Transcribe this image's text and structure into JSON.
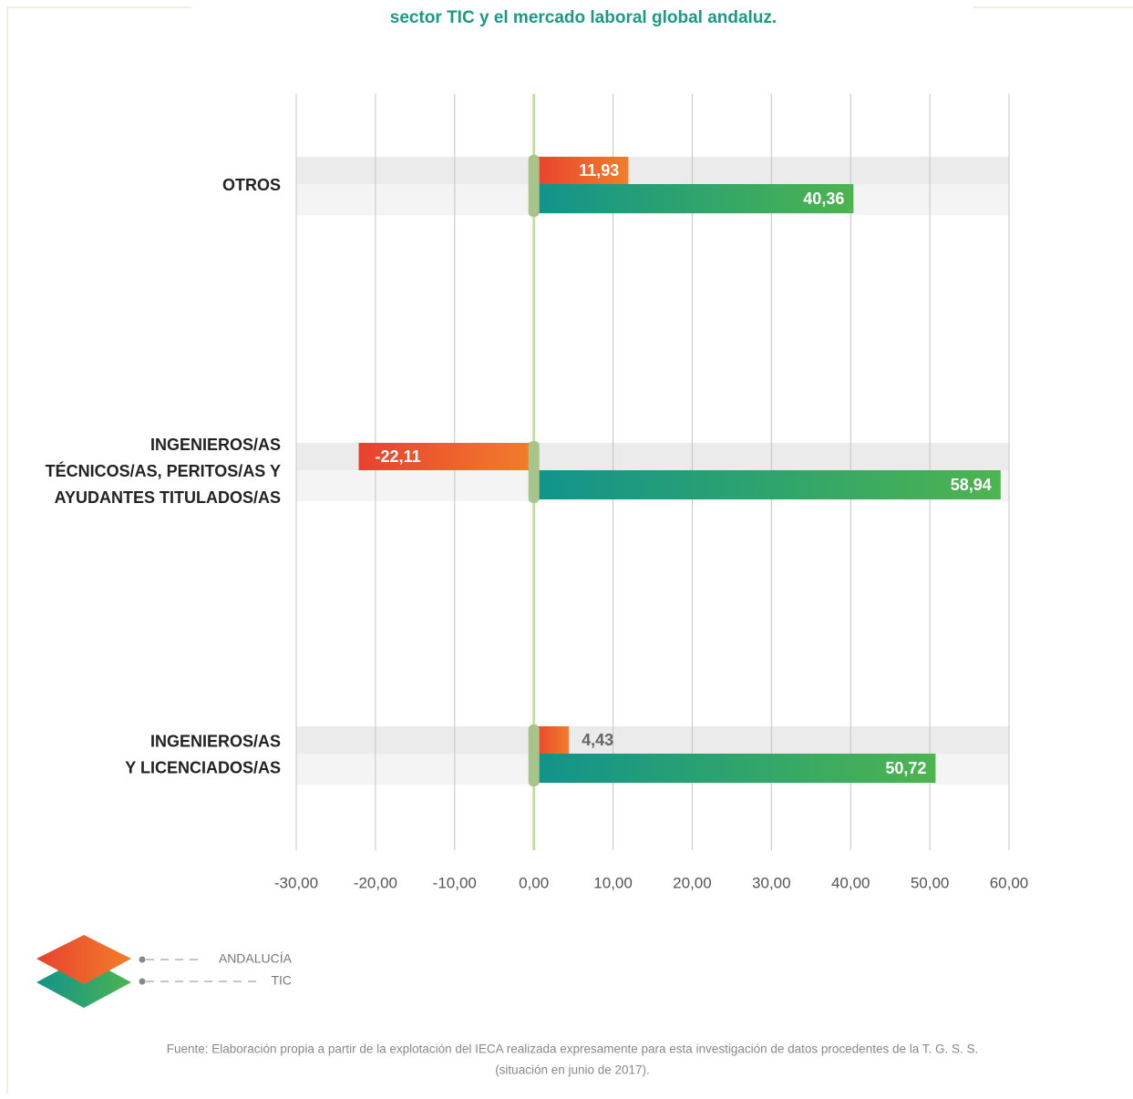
{
  "chart_data": {
    "type": "bar",
    "orientation": "horizontal",
    "title": "sector TIC y el mercado laboral global andaluz.",
    "categories": [
      "OTROS",
      "INGENIEROS/AS\nTÉCNICOS/AS, PERITOS/AS Y\nAYUDANTES TITULADOS/AS",
      "INGENIEROS/AS\nY LICENCIADOS/AS"
    ],
    "series": [
      {
        "name": "ANDALUCÍA",
        "color": [
          "#e8412f",
          "#f27e2a"
        ],
        "values": [
          11.93,
          -22.11,
          4.43
        ],
        "value_labels": [
          "11,93",
          "-22,11",
          "4,43"
        ]
      },
      {
        "name": "TIC",
        "color": [
          "#11938c",
          "#4db44f"
        ],
        "values": [
          40.36,
          58.94,
          50.72
        ],
        "value_labels": [
          "40,36",
          "58,94",
          "50,72"
        ]
      }
    ],
    "xlim": [
      -30,
      60
    ],
    "xticks": [
      {
        "value": -30,
        "label": "-30,00"
      },
      {
        "value": -20,
        "label": "-20,00"
      },
      {
        "value": -10,
        "label": "-10,00"
      },
      {
        "value": 0,
        "label": "0,00"
      },
      {
        "value": 10,
        "label": "10,00"
      },
      {
        "value": 20,
        "label": "20,00"
      },
      {
        "value": 30,
        "label": "30,00"
      },
      {
        "value": 40,
        "label": "40,00"
      },
      {
        "value": 50,
        "label": "50,00"
      },
      {
        "value": 60,
        "label": "60,00"
      }
    ],
    "grid": true,
    "legend": "bottom-left",
    "source": [
      "Fuente: Elaboración propia a partir de la explotación del IECA realizada expresamente para esta investigación de datos procedentes de la T. G. S. S.",
      "(situación en junio de 2017)."
    ]
  }
}
